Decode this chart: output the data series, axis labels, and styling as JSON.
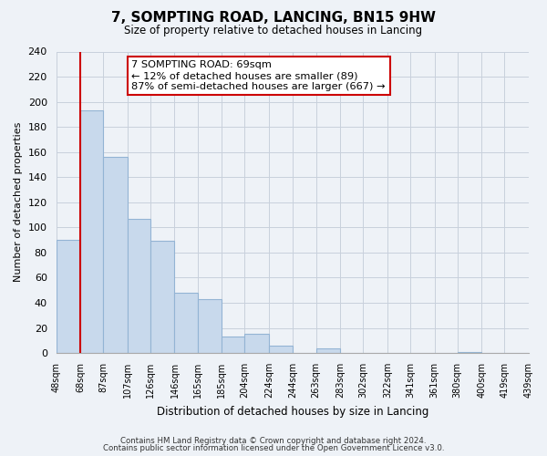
{
  "title": "7, SOMPTING ROAD, LANCING, BN15 9HW",
  "subtitle": "Size of property relative to detached houses in Lancing",
  "xlabel": "Distribution of detached houses by size in Lancing",
  "ylabel": "Number of detached properties",
  "bar_heights": [
    90,
    193,
    156,
    107,
    89,
    48,
    43,
    13,
    15,
    6,
    0,
    4,
    0,
    0,
    0,
    0,
    0,
    1,
    0,
    0
  ],
  "bin_edges": [
    48,
    68,
    87,
    107,
    126,
    146,
    165,
    185,
    204,
    224,
    244,
    263,
    283,
    302,
    322,
    341,
    361,
    380,
    400,
    419,
    439
  ],
  "tick_labels": [
    "48sqm",
    "68sqm",
    "87sqm",
    "107sqm",
    "126sqm",
    "146sqm",
    "165sqm",
    "185sqm",
    "204sqm",
    "224sqm",
    "244sqm",
    "263sqm",
    "283sqm",
    "302sqm",
    "322sqm",
    "341sqm",
    "361sqm",
    "380sqm",
    "400sqm",
    "419sqm",
    "439sqm"
  ],
  "bar_color": "#c8d9ec",
  "bar_edge_color": "#93b4d4",
  "property_line_x": 68,
  "property_line_color": "#cc0000",
  "ylim": [
    0,
    240
  ],
  "yticks": [
    0,
    20,
    40,
    60,
    80,
    100,
    120,
    140,
    160,
    180,
    200,
    220,
    240
  ],
  "annotation_line1": "7 SOMPTING ROAD: 69sqm",
  "annotation_line2": "← 12% of detached houses are smaller (89)",
  "annotation_line3": "87% of semi-detached houses are larger (667) →",
  "annotation_box_color": "#ffffff",
  "annotation_box_edge": "#cc0000",
  "footer_line1": "Contains HM Land Registry data © Crown copyright and database right 2024.",
  "footer_line2": "Contains public sector information licensed under the Open Government Licence v3.0.",
  "background_color": "#eef2f7",
  "plot_background": "#eef2f7",
  "grid_color": "#c8d0dc"
}
